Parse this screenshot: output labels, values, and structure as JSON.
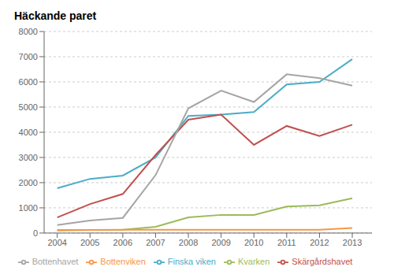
{
  "chart_data": {
    "type": "line",
    "title": "Häckande paret",
    "x": [
      2004,
      2005,
      2006,
      2007,
      2008,
      2009,
      2010,
      2011,
      2012,
      2013
    ],
    "xlim": [
      2003.6,
      2013.6
    ],
    "xticks": [
      2004,
      2005,
      2006,
      2007,
      2008,
      2009,
      2010,
      2011,
      2012,
      2013
    ],
    "ylim": [
      0,
      8000
    ],
    "yticks": [
      0,
      1000,
      2000,
      3000,
      4000,
      5000,
      6000,
      7000,
      8000
    ],
    "grid": true,
    "legend": "bottom",
    "series": [
      {
        "name": "Finska viken",
        "color": "#4BACC6",
        "values": [
          1780,
          2150,
          2280,
          3000,
          4650,
          4700,
          4800,
          5900,
          6000,
          6900
        ]
      },
      {
        "name": "Skärgårdshavet",
        "color": "#C0504D",
        "values": [
          620,
          1150,
          1550,
          3100,
          4500,
          4700,
          3500,
          4250,
          3850,
          4300
        ]
      },
      {
        "name": "Bottenhavet",
        "color": "#A5A5A5",
        "values": [
          320,
          500,
          600,
          2300,
          4950,
          5650,
          5200,
          6300,
          6150,
          5850
        ]
      },
      {
        "name": "Kvarken",
        "color": "#9BBB59",
        "values": [
          100,
          120,
          130,
          250,
          620,
          720,
          720,
          1050,
          1100,
          1380
        ]
      },
      {
        "name": "Bottenviken",
        "color": "#F79646",
        "values": [
          120,
          120,
          130,
          130,
          130,
          130,
          130,
          130,
          130,
          200
        ]
      }
    ]
  }
}
